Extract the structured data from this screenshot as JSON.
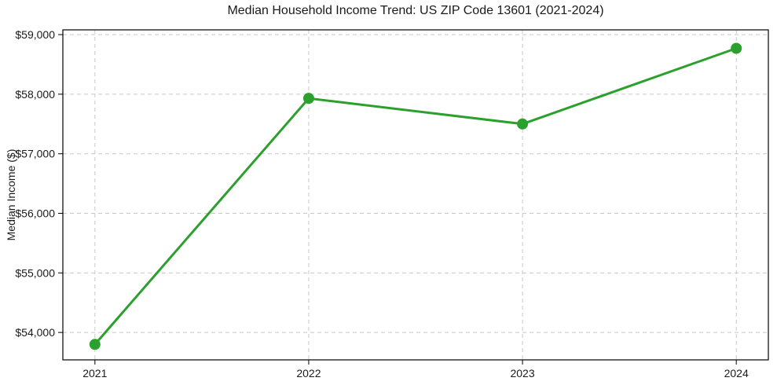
{
  "chart_data": {
    "type": "line",
    "title": "Median Household Income Trend: US ZIP Code 13601 (2021-2024)",
    "xlabel": "",
    "ylabel": "Median Income ($)",
    "x": [
      2021,
      2022,
      2023,
      2024
    ],
    "series": [
      {
        "name": "Median Household Income",
        "values": [
          53800,
          57930,
          57500,
          58770
        ]
      }
    ],
    "xticks": [
      2021,
      2022,
      2023,
      2024
    ],
    "xtick_labels": [
      "2021",
      "2022",
      "2023",
      "2024"
    ],
    "yticks": [
      54000,
      55000,
      56000,
      57000,
      58000,
      59000
    ],
    "ytick_labels": [
      "$54,000",
      "$55,000",
      "$56,000",
      "$57,000",
      "$58,000",
      "$59,000"
    ],
    "xlim": [
      2020.85,
      2024.15
    ],
    "ylim": [
      53540,
      59080
    ],
    "grid": true,
    "legend_position": "none",
    "colors": {
      "line": "#2ca02c",
      "marker": "#2ca02c",
      "grid": "#c8c8c8",
      "axes": "#000000",
      "text": "#1a1a1a",
      "background": "#ffffff"
    }
  }
}
